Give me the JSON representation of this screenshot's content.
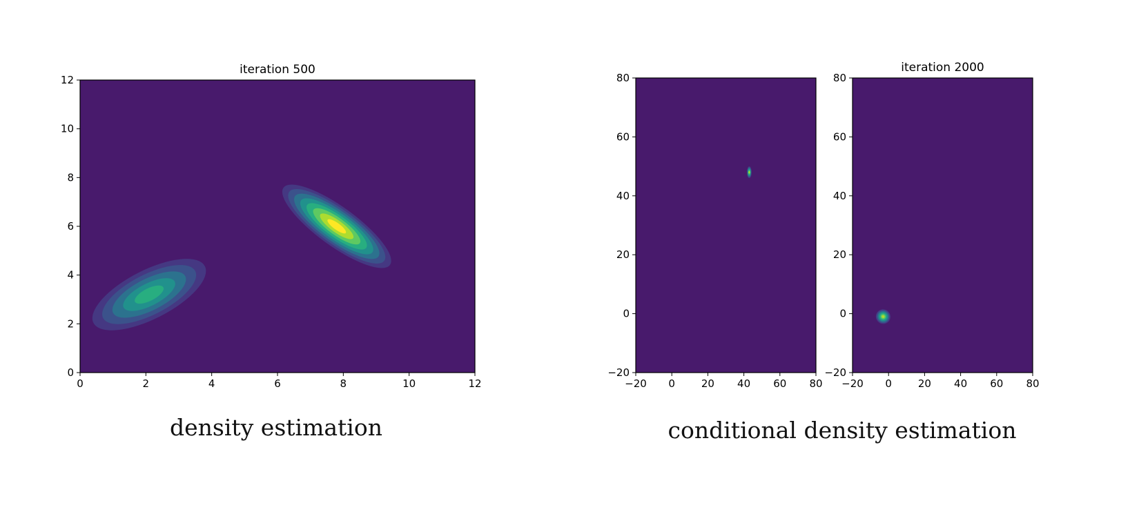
{
  "colors": {
    "background": "#481a6c",
    "levels": [
      "#481a6c",
      "#453882",
      "#3b528b",
      "#2c728e",
      "#21918c",
      "#28ae80",
      "#5ec962",
      "#addc30",
      "#fde725"
    ]
  },
  "captions": {
    "left": "density estimation",
    "right": "conditional density estimation"
  },
  "chart_data": [
    {
      "type": "heatmap",
      "subtype": "filled-contour density",
      "title": "iteration 500",
      "xlabel": "",
      "ylabel": "",
      "xlim": [
        0,
        12
      ],
      "ylim": [
        0,
        12
      ],
      "xticks": [
        "0",
        "2",
        "4",
        "6",
        "8",
        "10",
        "12"
      ],
      "yticks": [
        "0",
        "2",
        "4",
        "6",
        "8",
        "10",
        "12"
      ],
      "grid": false,
      "modes": [
        {
          "center": [
            2.1,
            3.2
          ],
          "peak_level": 5,
          "tilt_deg": 27,
          "extent": [
            1.9,
            1.0
          ]
        },
        {
          "center": [
            7.8,
            6.0
          ],
          "peak_level": 8,
          "tilt_deg": -36,
          "extent": [
            2.0,
            0.8
          ]
        }
      ]
    },
    {
      "type": "heatmap",
      "subtype": "filled-contour density",
      "title": "",
      "xlabel": "",
      "ylabel": "",
      "xlim": [
        -20,
        80
      ],
      "ylim": [
        -20,
        80
      ],
      "xticks": [
        "−20",
        "0",
        "20",
        "40",
        "60",
        "80"
      ],
      "yticks": [
        "−20",
        "0",
        "20",
        "40",
        "60",
        "80"
      ],
      "grid": false,
      "modes": [
        {
          "center": [
            43,
            48
          ],
          "peak_level": 7,
          "tilt_deg": 0,
          "extent": [
            1.3,
            2.0
          ]
        }
      ]
    },
    {
      "type": "heatmap",
      "subtype": "filled-contour density",
      "title": "iteration 2000",
      "xlabel": "",
      "ylabel": "",
      "xlim": [
        -20,
        80
      ],
      "ylim": [
        -20,
        80
      ],
      "xticks": [
        "−20",
        "0",
        "20",
        "40",
        "60",
        "80"
      ],
      "yticks": [
        "−20",
        "0",
        "20",
        "40",
        "60",
        "80"
      ],
      "grid": false,
      "modes": [
        {
          "center": [
            -3,
            -1
          ],
          "peak_level": 7,
          "tilt_deg": 45,
          "extent": [
            4.0,
            2.5
          ]
        }
      ]
    }
  ]
}
